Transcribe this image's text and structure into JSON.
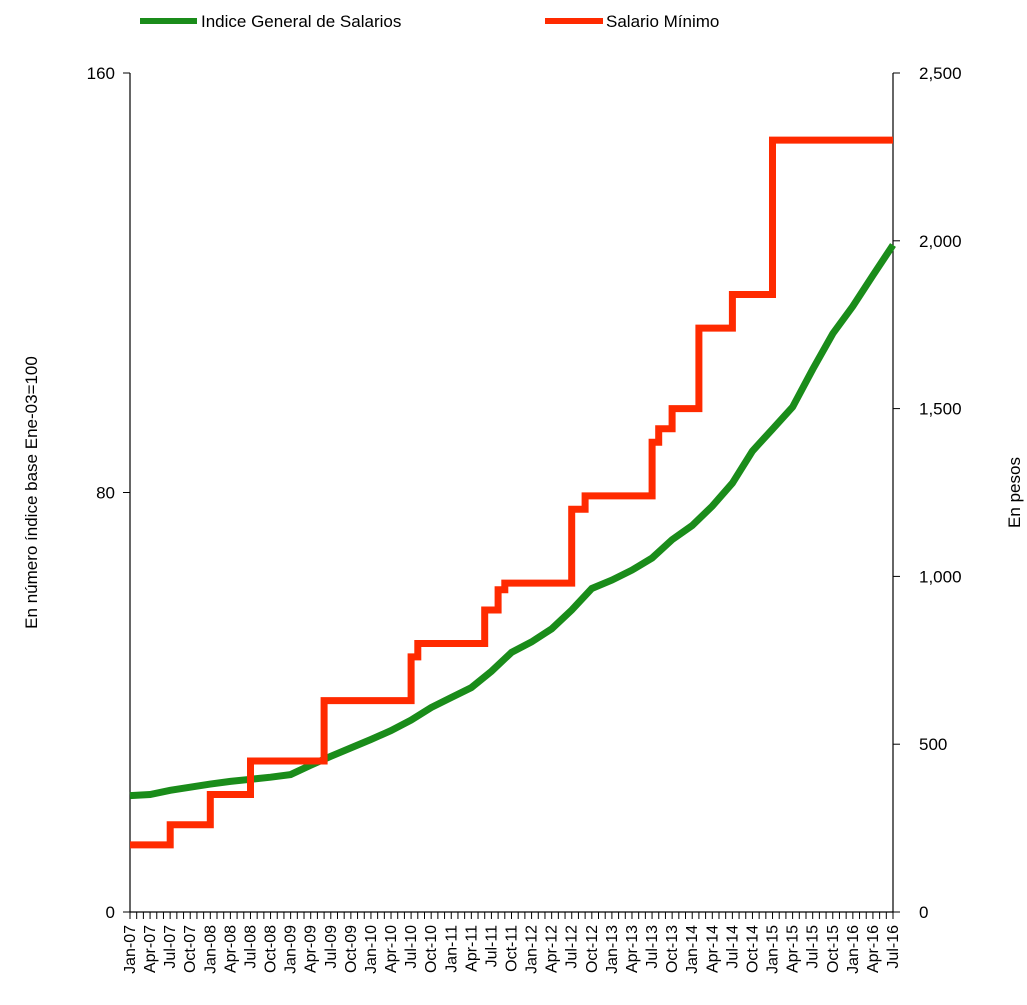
{
  "chart_data": {
    "type": "line",
    "legend": {
      "position": "top",
      "entries": [
        "Indice General de Salarios",
        "Salario Mínimo"
      ]
    },
    "colors": {
      "Indice General de Salarios": "#1a8c1a",
      "Salario Mínimo": "#ff2a00"
    },
    "y_left": {
      "label": "En número índice base Ene-03=100",
      "range": [
        0,
        160
      ],
      "ticks": [
        "0",
        "80",
        "160"
      ]
    },
    "y_right": {
      "label": "En pesos",
      "range": [
        0,
        2500
      ],
      "ticks": [
        "0",
        "500",
        "1,000",
        "1,500",
        "2,000",
        "2,500"
      ]
    },
    "x_tick_labels": [
      "Jan-07",
      "Apr-07",
      "Jul-07",
      "Oct-07",
      "Jan-08",
      "Apr-08",
      "Jul-08",
      "Oct-08",
      "Jan-09",
      "Apr-09",
      "Jul-09",
      "Oct-09",
      "Jan-10",
      "Apr-10",
      "Jul-10",
      "Oct-10",
      "Jan-11",
      "Apr-11",
      "Jul-11",
      "Oct-11",
      "Jan-12",
      "Apr-12",
      "Jul-12",
      "Oct-12",
      "Jan-13",
      "Apr-13",
      "Jul-13",
      "Oct-13",
      "Jan-14",
      "Apr-14",
      "Jul-14",
      "Oct-14",
      "Jan-15",
      "Apr-15",
      "Jul-15",
      "Oct-15",
      "Jan-16",
      "Apr-16",
      "Jul-16"
    ],
    "grid": false,
    "series": [
      {
        "name": "Indice General de Salarios",
        "axis": "left",
        "points": [
          [
            "Jan-07",
            22.2
          ],
          [
            "Apr-07",
            22.4
          ],
          [
            "Jul-07",
            23.2
          ],
          [
            "Oct-07",
            23.8
          ],
          [
            "Jan-08",
            24.4
          ],
          [
            "Apr-08",
            24.9
          ],
          [
            "Jul-08",
            25.3
          ],
          [
            "Oct-08",
            25.7
          ],
          [
            "Jan-09",
            26.2
          ],
          [
            "Apr-09",
            28.0
          ],
          [
            "Jul-09",
            29.7
          ],
          [
            "Oct-09",
            31.3
          ],
          [
            "Jan-10",
            32.9
          ],
          [
            "Apr-10",
            34.6
          ],
          [
            "Jul-10",
            36.6
          ],
          [
            "Oct-10",
            39.0
          ],
          [
            "Jan-11",
            40.9
          ],
          [
            "Apr-11",
            42.8
          ],
          [
            "Jul-11",
            45.9
          ],
          [
            "Oct-11",
            49.5
          ],
          [
            "Jan-12",
            51.5
          ],
          [
            "Apr-12",
            54.0
          ],
          [
            "Jul-12",
            57.6
          ],
          [
            "Oct-12",
            61.7
          ],
          [
            "Jan-13",
            63.3
          ],
          [
            "Apr-13",
            65.2
          ],
          [
            "Jul-13",
            67.5
          ],
          [
            "Oct-13",
            71.0
          ],
          [
            "Jan-14",
            73.7
          ],
          [
            "Apr-14",
            77.4
          ],
          [
            "Jul-14",
            81.8
          ],
          [
            "Oct-14",
            87.9
          ],
          [
            "Jan-15",
            92.1
          ],
          [
            "Apr-15",
            96.3
          ],
          [
            "Jul-15",
            103.5
          ],
          [
            "Oct-15",
            110.3
          ],
          [
            "Jan-16",
            115.5
          ],
          [
            "Apr-16",
            121.4
          ],
          [
            "Jul-16",
            127.2
          ]
        ]
      },
      {
        "name": "Salario Mínimo",
        "axis": "right",
        "steps": [
          [
            "Jan-07",
            200
          ],
          [
            "Jul-07",
            260
          ],
          [
            "Jan-08",
            350
          ],
          [
            "Jul-08",
            450
          ],
          [
            "Jun-09",
            630
          ],
          [
            "Jul-10",
            760
          ],
          [
            "Aug-10",
            800
          ],
          [
            "Jun-11",
            900
          ],
          [
            "Aug-11",
            960
          ],
          [
            "Sep-11",
            980
          ],
          [
            "Jul-12",
            1200
          ],
          [
            "Sep-12",
            1240
          ],
          [
            "Jul-13",
            1400
          ],
          [
            "Aug-13",
            1440
          ],
          [
            "Oct-13",
            1500
          ],
          [
            "Feb-14",
            1740
          ],
          [
            "Jul-14",
            1840
          ],
          [
            "Jan-15",
            2300
          ],
          [
            "Apr-15",
            2300
          ],
          [
            "Jul-16",
            2300
          ]
        ]
      }
    ]
  }
}
